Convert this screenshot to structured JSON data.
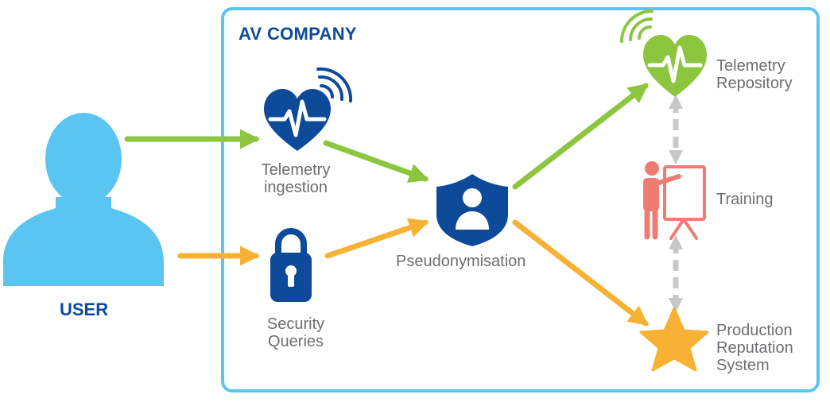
{
  "title": "AV COMPANY",
  "user": {
    "label": "USER"
  },
  "nodes": {
    "telemetry_ingestion": {
      "line1": "Telemetry",
      "line2": "ingestion"
    },
    "security_queries": {
      "line1": "Security",
      "line2": "Queries"
    },
    "pseudonymisation": {
      "label": "Pseudonymisation"
    },
    "telemetry_repository": {
      "line1": "Telemetry",
      "line2": "Repository"
    },
    "training": {
      "label": "Training"
    },
    "production_reputation": {
      "line1": "Production",
      "line2": "Reputation",
      "line3": "System"
    }
  },
  "colors": {
    "box_border": "#5bc5f2",
    "user_figure": "#5bc5f2",
    "brand_blue": "#0e4a9a",
    "green": "#8cc63f",
    "orange": "#f7b134",
    "salmon": "#ef7b73",
    "gray": "#c8c8c8",
    "text": "#6d6e71"
  },
  "icons": {
    "user": "person-silhouette-icon",
    "telemetry_ingestion": "heart-pulse-signal-icon",
    "security_queries": "padlock-icon",
    "pseudonymisation": "shield-person-icon",
    "telemetry_repository": "heart-pulse-signal-icon",
    "training": "presenter-board-icon",
    "production_reputation": "star-icon"
  }
}
